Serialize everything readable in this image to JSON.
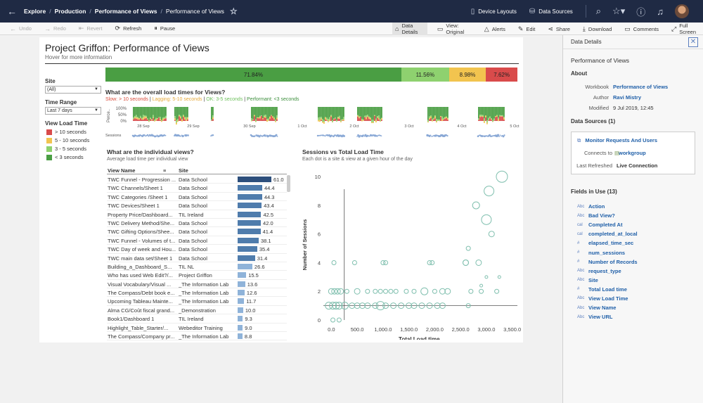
{
  "topbar": {
    "breadcrumbs": [
      "Explore",
      "Production",
      "Performance of Views",
      "Performance of Views"
    ],
    "device_layouts": "Device Layouts",
    "data_sources": "Data Sources"
  },
  "toolbar": {
    "undo": "Undo",
    "redo": "Redo",
    "revert": "Revert",
    "refresh": "Refresh",
    "pause": "Pause",
    "data_details": "Data Details",
    "view_original": "View: Original",
    "alerts": "Alerts",
    "edit": "Edit",
    "share": "Share",
    "download": "Download",
    "comments": "Comments",
    "full_screen": "Full Screen"
  },
  "dashboard": {
    "title": "Project Griffon: Performance of Views",
    "subtitle": "Hover for more information",
    "filters": {
      "site_label": "Site",
      "site_value": "(All)",
      "time_label": "Time Range",
      "time_value": "Last 7 days",
      "legend_title": "View Load Time",
      "legend": [
        {
          "label": "> 10 seconds",
          "color": "#d94b4b"
        },
        {
          "label": "5 - 10 seconds",
          "color": "#f2c44f"
        },
        {
          "label": "3 - 5 seconds",
          "color": "#8ed16f"
        },
        {
          "label": "< 3 seconds",
          "color": "#4a9e43"
        }
      ]
    },
    "summary_bar": [
      {
        "label": "71.84%",
        "value": 71.84,
        "color": "#4a9e43"
      },
      {
        "label": "11.56%",
        "value": 11.56,
        "color": "#8ed16f"
      },
      {
        "label": "8.98%",
        "value": 8.98,
        "color": "#f2c44f"
      },
      {
        "label": "7.62%",
        "value": 7.62,
        "color": "#d94b4b"
      }
    ],
    "q1": {
      "title": "What are the overall load times for Views?",
      "slow": "Slow: > 10 seconds",
      "lagging": "Lagging: 5-10 seconds",
      "ok": "OK: 3-5 seconds",
      "performant": "Performant: <3 seconds",
      "y_label": "Perce..",
      "y_ticks": [
        "100%",
        "50%",
        "0%"
      ],
      "dates": [
        "28 Sep",
        "29 Sep",
        "30 Sep",
        "1 Oct",
        "2 Oct",
        "3 Oct",
        "4 Oct",
        "5 Oct"
      ],
      "sessions_label": "Sessions"
    },
    "q2": {
      "title": "What are the individual views?",
      "subtitle": "Average load time per individual view",
      "col_view": "View Name",
      "col_site": "Site",
      "rows": [
        {
          "view": "TWC Funnel - Progression ...",
          "site": "Data School",
          "value": 61.0,
          "label": "61.0"
        },
        {
          "view": "TWC Channels/Sheet 1",
          "site": "Data School",
          "value": 44.4,
          "label": "44.4"
        },
        {
          "view": "TWC Categories /Sheet 1",
          "site": "Data School",
          "value": 44.3,
          "label": "44.3"
        },
        {
          "view": "TWC Devices/Sheet 1",
          "site": "Data School",
          "value": 43.4,
          "label": "43.4"
        },
        {
          "view": "Property Price/Dashboard...",
          "site": "TIL Ireland",
          "value": 42.5,
          "label": "42.5"
        },
        {
          "view": "TWC Delivery Method/She...",
          "site": "Data School",
          "value": 42.0,
          "label": "42.0"
        },
        {
          "view": "TWC Gifting Options/Shee...",
          "site": "Data School",
          "value": 41.4,
          "label": "41.4"
        },
        {
          "view": "TWC Funnel - Volumes of t...",
          "site": "Data School",
          "value": 38.1,
          "label": "38.1"
        },
        {
          "view": "TWC Day of week and Hou...",
          "site": "Data School",
          "value": 35.4,
          "label": "35.4"
        },
        {
          "view": "TWC main data set/Sheet 1",
          "site": "Data School",
          "value": 31.4,
          "label": "31.4"
        },
        {
          "view": "Building_a_Dashboard_S...",
          "site": "TIL NL",
          "value": 26.6,
          "label": "26.6"
        },
        {
          "view": "Who has used Web Edit?/...",
          "site": "Project Griffon",
          "value": 15.5,
          "label": "15.5"
        },
        {
          "view": "Visual Vocabulary/Visual ...",
          "site": "_The Information Lab",
          "value": 13.6,
          "label": "13.6"
        },
        {
          "view": "The Compass/Debt book e...",
          "site": "_The Information Lab",
          "value": 12.6,
          "label": "12.6"
        },
        {
          "view": "Upcoming Tableau Mainte...",
          "site": "_The Information Lab",
          "value": 11.7,
          "label": "11.7"
        },
        {
          "view": "Alma CG/Coût fiscal grand...",
          "site": "_Demonstration",
          "value": 10.0,
          "label": "10.0"
        },
        {
          "view": "Book1/Dashboard 1",
          "site": "TIL Ireland",
          "value": 9.3,
          "label": "9.3"
        },
        {
          "view": "Highlight_Table_Starter/...",
          "site": "Webeditor Training",
          "value": 9.0,
          "label": "9.0"
        },
        {
          "view": "The Compass/Company pr...",
          "site": "_The Information Lab",
          "value": 8.8,
          "label": "8.8"
        }
      ]
    },
    "q3": {
      "title": "Sessions vs Total Load Time",
      "subtitle": "Each dot is a site & view at a given hour of the day"
    }
  },
  "chart_data": {
    "type": "scatter",
    "title": "Sessions vs Total Load Time",
    "xlabel": "Total Load time",
    "ylabel": "Number of Sessions",
    "xlim": [
      -100,
      3600
    ],
    "ylim": [
      0,
      10.5
    ],
    "x_ticks": [
      "0.0",
      "500.0",
      "1,000.0",
      "1,500.0",
      "2,000.0",
      "2,500.0",
      "3,000.0",
      "3,500.0"
    ],
    "y_ticks": [
      "0",
      "2",
      "4",
      "6",
      "8",
      "10"
    ],
    "points": [
      [
        3300,
        10,
        8
      ],
      [
        3050,
        9,
        7
      ],
      [
        2800,
        8,
        5
      ],
      [
        3000,
        7,
        7
      ],
      [
        3100,
        6,
        4
      ],
      [
        2650,
        5,
        3
      ],
      [
        2600,
        4,
        4
      ],
      [
        2850,
        4,
        4
      ],
      [
        50,
        4,
        3
      ],
      [
        450,
        4,
        3
      ],
      [
        1000,
        4,
        3
      ],
      [
        1050,
        4,
        3
      ],
      [
        1900,
        4,
        3
      ],
      [
        1950,
        4,
        3
      ],
      [
        2600,
        4,
        4
      ],
      [
        3000,
        3,
        2
      ],
      [
        3250,
        3,
        2
      ],
      [
        2900,
        2.4,
        2
      ],
      [
        0,
        2,
        4
      ],
      [
        60,
        2,
        4
      ],
      [
        120,
        2,
        4
      ],
      [
        180,
        2,
        4
      ],
      [
        300,
        2,
        3
      ],
      [
        500,
        2,
        4
      ],
      [
        700,
        2,
        3
      ],
      [
        850,
        2,
        3
      ],
      [
        950,
        2,
        3
      ],
      [
        1050,
        2,
        3
      ],
      [
        1150,
        2,
        3
      ],
      [
        1250,
        2,
        3
      ],
      [
        1450,
        2,
        3
      ],
      [
        1600,
        2,
        3
      ],
      [
        1800,
        2,
        5
      ],
      [
        2000,
        2,
        3
      ],
      [
        2150,
        2,
        4
      ],
      [
        2250,
        2,
        4
      ],
      [
        2700,
        2,
        3
      ],
      [
        2900,
        2,
        3
      ],
      [
        3200,
        2,
        3
      ],
      [
        -50,
        1,
        5
      ],
      [
        30,
        1,
        5
      ],
      [
        90,
        1,
        5
      ],
      [
        150,
        1,
        5
      ],
      [
        260,
        1,
        5
      ],
      [
        400,
        1,
        4
      ],
      [
        500,
        1,
        4
      ],
      [
        600,
        1,
        4
      ],
      [
        700,
        1,
        4
      ],
      [
        850,
        1,
        4
      ],
      [
        950,
        1,
        6
      ],
      [
        1050,
        1,
        4
      ],
      [
        1200,
        1,
        4
      ],
      [
        1350,
        1,
        4
      ],
      [
        1500,
        1,
        4
      ],
      [
        1600,
        1,
        4
      ],
      [
        1750,
        1,
        4
      ],
      [
        1900,
        1,
        4
      ],
      [
        2050,
        1,
        4
      ],
      [
        2150,
        1,
        4
      ],
      [
        2650,
        1,
        3
      ],
      [
        30,
        0,
        3
      ],
      [
        150,
        0,
        3
      ]
    ]
  },
  "panel": {
    "header": "Data Details",
    "view_title": "Performance of Views",
    "about_label": "About",
    "workbook_k": "Workbook",
    "workbook_v": "Performance of Views",
    "author_k": "Author",
    "author_v": "Ravi Mistry",
    "modified_k": "Modified",
    "modified_v": "9 Jul 2019, 12:45",
    "sources_label": "Data Sources (1)",
    "source_name": "Monitor Requests And Users",
    "connects_k": "Connects to",
    "connects_v": "workgroup",
    "refreshed_k": "Last Refreshed",
    "refreshed_v": "Live Connection",
    "fields_label": "Fields in Use (13)",
    "fields": [
      {
        "type": "Abc",
        "name": "Action"
      },
      {
        "type": "Abc",
        "name": "Bad View?"
      },
      {
        "type": "cal",
        "name": "Completed At"
      },
      {
        "type": "cal",
        "name": "completed_at_local"
      },
      {
        "type": "#",
        "name": "elapsed_time_sec"
      },
      {
        "type": "#",
        "name": "num_sessions"
      },
      {
        "type": "#",
        "name": "Number of Records"
      },
      {
        "type": "Abc",
        "name": "request_type"
      },
      {
        "type": "Abc",
        "name": "Site"
      },
      {
        "type": "#",
        "name": "Total Load time"
      },
      {
        "type": "Abc",
        "name": "View Load Time"
      },
      {
        "type": "Abc",
        "name": "View Name"
      },
      {
        "type": "Abc",
        "name": "View URL"
      }
    ]
  }
}
